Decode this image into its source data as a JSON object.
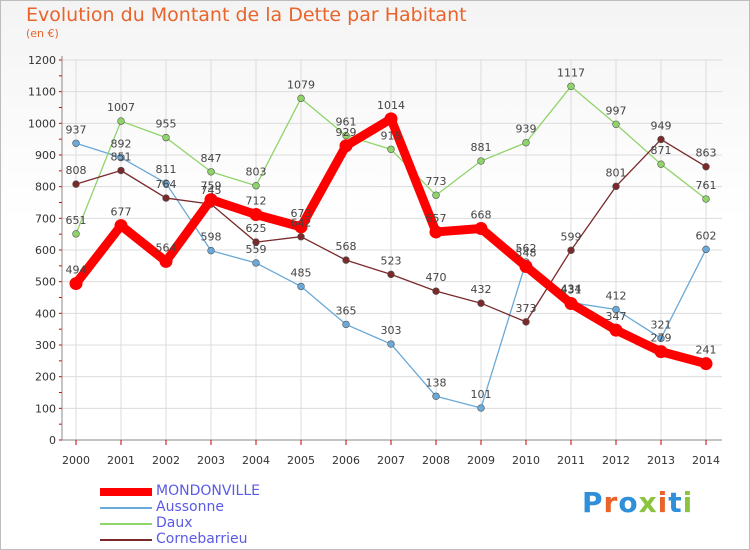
{
  "header": {
    "title": "Evolution du Montant de la Dette par Habitant",
    "subtitle": "(en €)"
  },
  "logo": {
    "letters": [
      "P",
      "r",
      "o",
      "x",
      "i",
      "t",
      "i"
    ],
    "colors": [
      "#2f8fd8",
      "#e8642a",
      "#2f8fd8",
      "#8bc53f",
      "#e8642a",
      "#2f8fd8",
      "#8bc53f"
    ]
  },
  "chart_data": {
    "type": "line",
    "x": [
      "2000",
      "2001",
      "2002",
      "2003",
      "2004",
      "2005",
      "2006",
      "2007",
      "2008",
      "2009",
      "2010",
      "2011",
      "2012",
      "2013",
      "2014"
    ],
    "ylim": [
      0,
      1200
    ],
    "yticks": [
      0,
      100,
      200,
      300,
      400,
      500,
      600,
      700,
      800,
      900,
      1000,
      1100,
      1200
    ],
    "grid": true,
    "legend_position": "bottom-left",
    "series": [
      {
        "name": "MONDONVILLE",
        "color": "#ff0000",
        "values": [
          494,
          677,
          564,
          759,
          712,
          673,
          929,
          1014,
          657,
          668,
          548,
          431,
          347,
          279,
          241
        ]
      },
      {
        "name": "Aussonne",
        "color": "#6aa9d8",
        "values": [
          937,
          892,
          811,
          598,
          559,
          485,
          365,
          303,
          138,
          101,
          562,
          434,
          412,
          321,
          602
        ]
      },
      {
        "name": "Daux",
        "color": "#8fd46a",
        "values": [
          651,
          1007,
          955,
          847,
          803,
          1079,
          961,
          918,
          773,
          881,
          939,
          1117,
          997,
          871,
          761
        ]
      },
      {
        "name": "Cornebarrieu",
        "color": "#7a2a2a",
        "values": [
          808,
          851,
          764,
          745,
          625,
          642,
          568,
          523,
          470,
          432,
          373,
          599,
          801,
          949,
          863
        ]
      }
    ]
  }
}
